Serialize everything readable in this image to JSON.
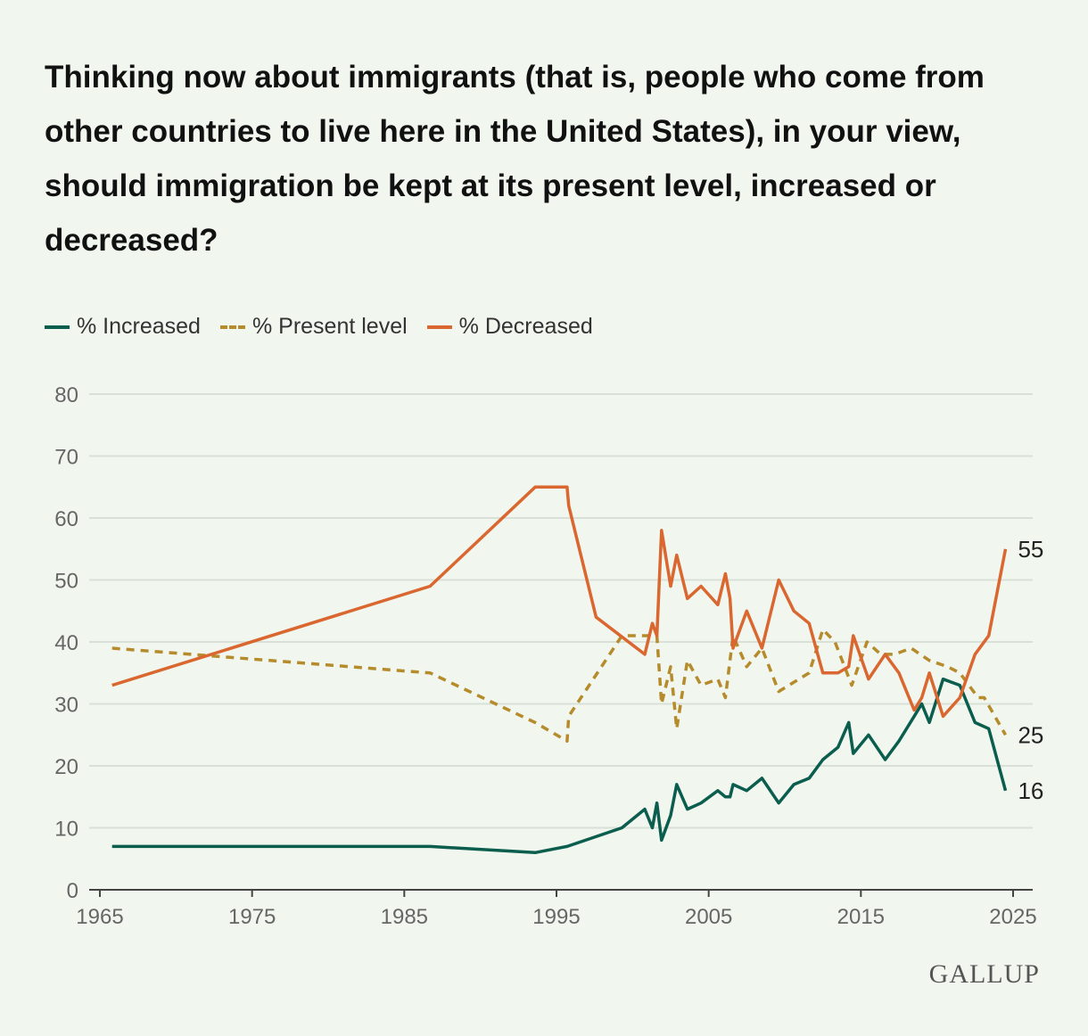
{
  "title": "Thinking now about immigrants (that is, people who come from other countries to live here in the United States), in your view, should immigration be kept at its present level, increased or decreased?",
  "logo": "GALLUP",
  "colors": {
    "increased": "#0b5d4e",
    "present": "#b58b2c",
    "decreased": "#d9672f",
    "grid": "#d9e0d8",
    "axis": "#444444"
  },
  "chart_data": {
    "type": "line",
    "title": "Thinking now about immigrants (that is, people who come from other countries to live here in the United States), in your view, should immigration be kept at its present level, increased or decreased?",
    "xlabel": "",
    "ylabel": "",
    "xlim": [
      1965,
      2025
    ],
    "ylim": [
      0,
      80
    ],
    "xticks": [
      1965,
      1975,
      1985,
      1995,
      2005,
      2015,
      2025
    ],
    "yticks": [
      0,
      10,
      20,
      30,
      40,
      50,
      60,
      70,
      80
    ],
    "grid": true,
    "legend_position": "top-left",
    "series": [
      {
        "name": "% Increased",
        "key": "increased",
        "style": "solid",
        "end_label": "16",
        "x": [
          1965.8,
          1986.7,
          1993.6,
          1995.7,
          1999.3,
          2000.8,
          2001.3,
          2001.6,
          2001.9,
          2002.5,
          2002.9,
          2003.6,
          2004.5,
          2005.6,
          2006.1,
          2006.4,
          2006.6,
          2007.5,
          2008.5,
          2009.6,
          2010.6,
          2011.6,
          2012.5,
          2013.5,
          2014.2,
          2014.5,
          2015.5,
          2016.6,
          2017.5,
          2018.5,
          2019.0,
          2019.5,
          2020.4,
          2021.5,
          2022.5,
          2023.4,
          2024.5
        ],
        "y": [
          7,
          7,
          6,
          7,
          10,
          13,
          10,
          14,
          8,
          12,
          17,
          13,
          14,
          16,
          15,
          15,
          17,
          16,
          18,
          14,
          17,
          18,
          21,
          23,
          27,
          22,
          25,
          21,
          24,
          28,
          30,
          27,
          34,
          33,
          27,
          26,
          16
        ]
      },
      {
        "name": "% Present level",
        "key": "present",
        "style": "dashed",
        "end_label": "25",
        "x": [
          1965.8,
          1986.7,
          1993.6,
          1995.7,
          1995.8,
          1999.3,
          2000.8,
          2001.3,
          2001.6,
          2001.9,
          2002.5,
          2002.9,
          2003.6,
          2004.5,
          2005.6,
          2006.1,
          2006.6,
          2007.5,
          2008.5,
          2009.6,
          2011.6,
          2012.5,
          2013.3,
          2014.4,
          2015.4,
          2016.3,
          2017.2,
          2018.3,
          2019.5,
          2020.7,
          2021.5,
          2022.7,
          2023.1,
          2024.5
        ],
        "y": [
          39,
          35,
          27,
          24,
          28,
          41,
          41,
          41,
          41,
          30,
          36,
          26,
          37,
          33,
          34,
          31,
          41,
          36,
          39,
          32,
          35,
          42,
          40,
          33,
          40,
          38,
          38,
          39,
          37,
          36,
          35,
          31,
          31,
          25
        ]
      },
      {
        "name": "% Decreased",
        "key": "decreased",
        "style": "solid",
        "end_label": "55",
        "x": [
          1965.8,
          1986.7,
          1993.6,
          1995.7,
          1995.8,
          1997.6,
          2000.8,
          2001.3,
          2001.6,
          2001.9,
          2002.5,
          2002.9,
          2003.6,
          2004.5,
          2005.6,
          2006.1,
          2006.4,
          2006.6,
          2007.5,
          2008.5,
          2009.6,
          2010.6,
          2011.6,
          2012.5,
          2013.5,
          2014.2,
          2014.5,
          2015.5,
          2016.6,
          2017.5,
          2018.5,
          2019.0,
          2019.5,
          2020.4,
          2021.5,
          2022.5,
          2023.4,
          2024.5
        ],
        "y": [
          33,
          49,
          65,
          65,
          62,
          44,
          38,
          43,
          41,
          58,
          49,
          54,
          47,
          49,
          46,
          51,
          47,
          39,
          45,
          39,
          50,
          45,
          43,
          35,
          35,
          36,
          41,
          34,
          38,
          35,
          29,
          31,
          35,
          28,
          31,
          38,
          41,
          55
        ]
      }
    ]
  }
}
